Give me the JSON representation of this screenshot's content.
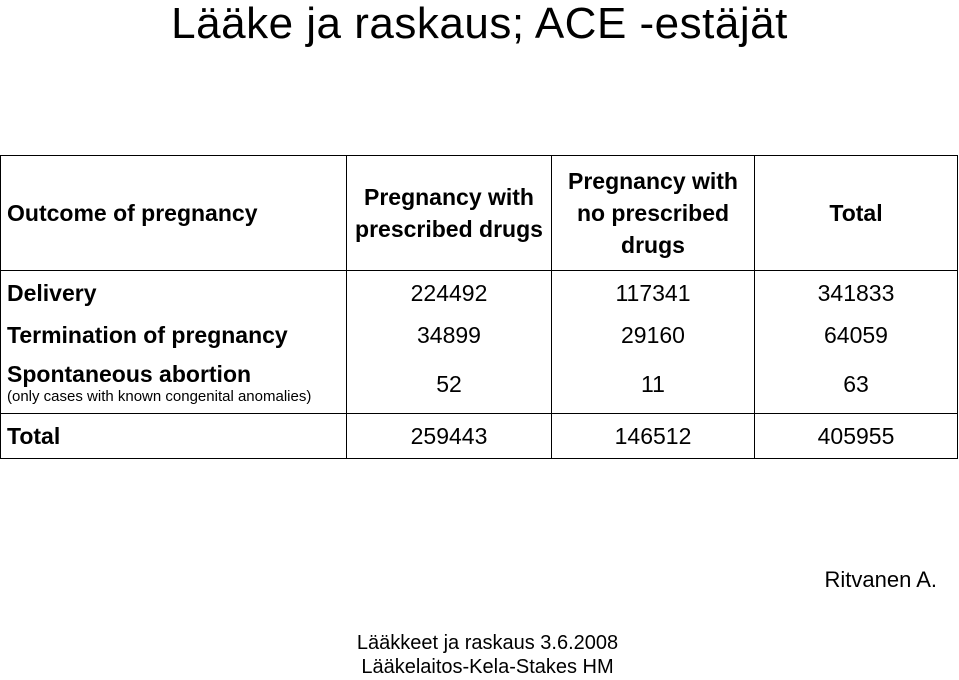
{
  "title": "Lääke ja raskaus; ACE -estäjät",
  "table": {
    "headers": {
      "outcome": "Outcome of pregnancy",
      "with_drugs": "Pregnancy with prescribed drugs",
      "no_drugs": "Pregnancy with no prescribed drugs",
      "total": "Total"
    },
    "rows": [
      {
        "label": "Delivery",
        "note": "",
        "with_drugs": "224492",
        "no_drugs": "117341",
        "total": "341833"
      },
      {
        "label": "Termination of pregnancy",
        "note": "",
        "with_drugs": "34899",
        "no_drugs": "29160",
        "total": "64059"
      },
      {
        "label": "Spontaneous abortion",
        "note": "(only cases with known congenital anomalies)",
        "with_drugs": "52",
        "no_drugs": "11",
        "total": "63"
      }
    ],
    "total_row": {
      "label": "Total",
      "with_drugs": "259443",
      "no_drugs": "146512",
      "total": "405955"
    }
  },
  "credit": "Ritvanen A.",
  "footer": {
    "line1": "Lääkkeet ja raskaus 3.6.2008",
    "line2": "Lääkelaitos-Kela-Stakes HM"
  }
}
